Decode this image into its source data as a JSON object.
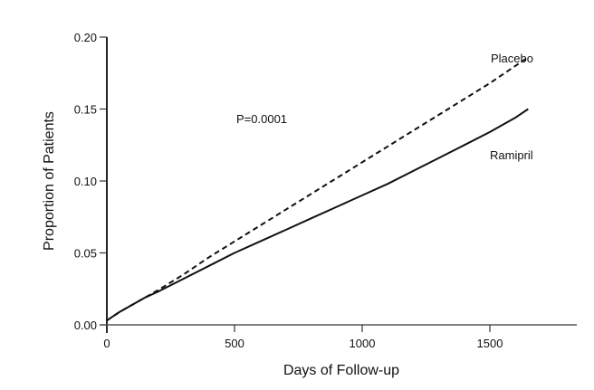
{
  "chart_data": {
    "type": "line",
    "title": "",
    "xlabel": "Days of Follow-up",
    "ylabel": "Proportion of Patients",
    "xlim": [
      0,
      1750
    ],
    "ylim": [
      0,
      0.2
    ],
    "x_ticks": [
      0,
      500,
      1000,
      1500
    ],
    "x_tick_labels": [
      "0",
      "500",
      "1000",
      "1500"
    ],
    "y_ticks": [
      0,
      0.05,
      0.1,
      0.15,
      0.2
    ],
    "y_tick_labels": [
      "0.00",
      "0.05",
      "0.10",
      "0.15",
      "0.20"
    ],
    "grid": false,
    "legend": "inline labels at line ends",
    "annotations": [
      {
        "text": "P=0.0001",
        "x": 490,
        "y": 0.143
      }
    ],
    "series": [
      {
        "name": "Placebo",
        "style": "dashed",
        "color": "#111111",
        "x": [
          0,
          50,
          100,
          150,
          200,
          300,
          400,
          500,
          600,
          700,
          800,
          900,
          1000,
          1100,
          1200,
          1300,
          1400,
          1500,
          1600,
          1650
        ],
        "y": [
          0.003,
          0.009,
          0.014,
          0.019,
          0.024,
          0.035,
          0.047,
          0.058,
          0.069,
          0.08,
          0.091,
          0.102,
          0.113,
          0.124,
          0.135,
          0.146,
          0.157,
          0.168,
          0.18,
          0.186
        ]
      },
      {
        "name": "Ramipril",
        "style": "solid",
        "color": "#111111",
        "x": [
          0,
          50,
          100,
          150,
          200,
          300,
          400,
          500,
          600,
          700,
          800,
          900,
          1000,
          1100,
          1200,
          1300,
          1400,
          1500,
          1600,
          1650
        ],
        "y": [
          0.003,
          0.009,
          0.014,
          0.019,
          0.023,
          0.032,
          0.041,
          0.05,
          0.058,
          0.066,
          0.074,
          0.082,
          0.09,
          0.098,
          0.107,
          0.116,
          0.125,
          0.134,
          0.144,
          0.15
        ]
      }
    ]
  },
  "labels": {
    "placebo": "Placebo",
    "ramipril": "Ramipril",
    "pvalue": "P=0.0001",
    "xlabel": "Days of Follow-up",
    "ylabel": "Proportion of Patients"
  }
}
